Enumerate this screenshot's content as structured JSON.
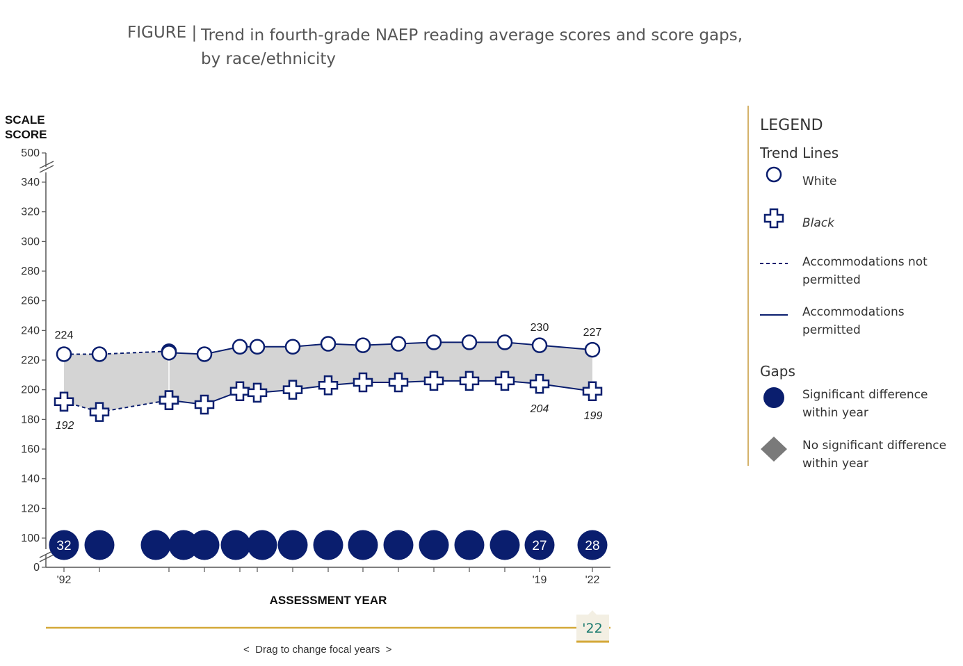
{
  "title": {
    "label": "FIGURE |",
    "text": "Trend in fourth-grade NAEP reading average scores and score gaps, by race/ethnicity"
  },
  "chart_data": {
    "type": "line",
    "ylabel_line1": "SCALE",
    "ylabel_line2": "SCORE",
    "xlabel": "ASSESSMENT YEAR",
    "ylim": [
      0,
      500
    ],
    "y_ticks": [
      "500",
      "340",
      "320",
      "300",
      "280",
      "260",
      "240",
      "220",
      "200",
      "180",
      "160",
      "140",
      "120",
      "100",
      "0"
    ],
    "x_tick_labels": [
      "'92",
      "'19",
      "'22"
    ],
    "x": [
      1992,
      1994,
      1998,
      1998,
      2000,
      2002,
      2003,
      2005,
      2007,
      2009,
      2011,
      2013,
      2015,
      2017,
      2019,
      2022
    ],
    "series": [
      {
        "name": "White",
        "accommodations_not_permitted": {
          "x": [
            1992,
            1994,
            1998
          ],
          "y": [
            224,
            224,
            226
          ]
        },
        "accommodations_permitted": {
          "x": [
            1998,
            2000,
            2002,
            2003,
            2005,
            2007,
            2009,
            2011,
            2013,
            2015,
            2017,
            2019,
            2022
          ],
          "y": [
            225,
            224,
            229,
            229,
            229,
            231,
            230,
            231,
            232,
            232,
            232,
            230,
            227
          ]
        }
      },
      {
        "name": "Black",
        "accommodations_not_permitted": {
          "x": [
            1992,
            1994,
            1998
          ],
          "y": [
            192,
            185,
            193
          ]
        },
        "accommodations_permitted": {
          "x": [
            1998,
            2000,
            2002,
            2003,
            2005,
            2007,
            2009,
            2011,
            2013,
            2015,
            2017,
            2019,
            2022
          ],
          "y": [
            193,
            190,
            199,
            198,
            200,
            203,
            205,
            205,
            206,
            206,
            206,
            204,
            199
          ]
        }
      }
    ],
    "gaps": {
      "x": [
        1992,
        1994,
        1998,
        1998,
        2000,
        2002,
        2003,
        2005,
        2007,
        2009,
        2011,
        2013,
        2015,
        2017,
        2019,
        2022
      ],
      "significant": [
        true,
        true,
        true,
        true,
        true,
        true,
        true,
        true,
        true,
        true,
        true,
        true,
        true,
        true,
        true,
        true
      ],
      "labels": [
        "32",
        "",
        "",
        "",
        "",
        "",
        "",
        "",
        "",
        "",
        "",
        "",
        "",
        "",
        "27",
        "28"
      ]
    },
    "point_labels": {
      "white_1992": "224",
      "white_2019": "230",
      "white_2022": "227",
      "black_1992": "192",
      "black_2019": "204",
      "black_2022": "199"
    },
    "colors": {
      "navy": "#0a1e6e",
      "gap_fill": "#d4d4d4",
      "gold": "#d4a838",
      "teal": "#1a7a6e"
    }
  },
  "slider": {
    "focal_year": "'22",
    "hint_left": "<",
    "hint_text": "Drag to change focal years",
    "hint_right": ">"
  },
  "legend": {
    "title": "LEGEND",
    "trend_heading": "Trend Lines",
    "white": "White",
    "black": "Black",
    "not_permitted": "Accommodations not permitted",
    "permitted": "Accommodations permitted",
    "gaps_heading": "Gaps",
    "significant": "Significant difference within year",
    "not_significant": "No significant difference within year"
  }
}
